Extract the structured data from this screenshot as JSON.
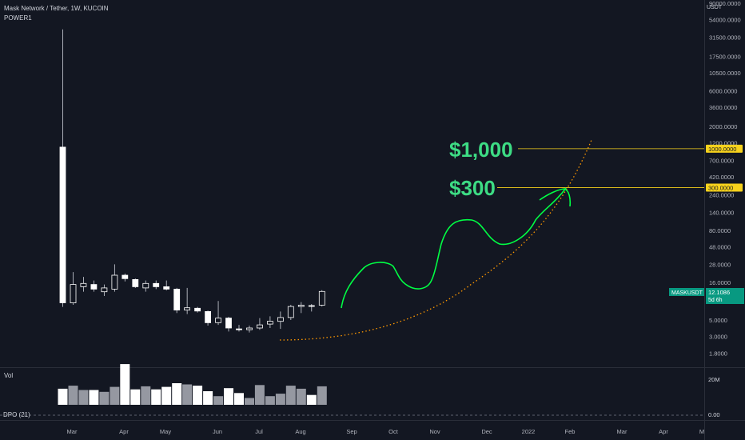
{
  "header": {
    "symbol_line": "Mask Network / Tether, 1W, KUCOIN",
    "indicator": "POWER1"
  },
  "price_axis": {
    "unit_label": "USDT",
    "ticks": [
      "90000.0000",
      "54000.0000",
      "31500.0000",
      "17500.0000",
      "10500.0000",
      "6000.0000",
      "3600.0000",
      "2000.0000",
      "1200.0000",
      "700.0000",
      "420.0000",
      "240.0000",
      "140.0000",
      "80.0000",
      "48.0000",
      "28.0000",
      "16.0000",
      "5.0000",
      "3.0000",
      "1.8000"
    ],
    "tick_values": [
      90000,
      54000,
      31500,
      17500,
      10500,
      6000,
      3600,
      2000,
      1200,
      700,
      420,
      240,
      140,
      80,
      48,
      28,
      16,
      5,
      3,
      1.8
    ],
    "scale": "log"
  },
  "time_axis": {
    "labels": [
      "Mar",
      "Apr",
      "May",
      "Jun",
      "Jul",
      "Aug",
      "Sep",
      "Oct",
      "Nov",
      "Dec",
      "2022",
      "Feb",
      "Mar",
      "Apr",
      "M"
    ]
  },
  "markers": {
    "last_price": {
      "symbol": "MASKUSDT",
      "price": "12.1086",
      "countdown": "5d 6h",
      "color": "#089981"
    },
    "level_1000": {
      "label": "1000.0000",
      "value": 1000,
      "color": "#f7d21c"
    },
    "level_300": {
      "label": "300.0000",
      "value": 300,
      "color": "#f7d21c"
    }
  },
  "annotations": {
    "target_1000": "$1,000",
    "target_300": "$300",
    "color": "#3ddc84",
    "path_color": "#00ff44",
    "curve_color": "#ff9800"
  },
  "volume_pane": {
    "title": "Vol",
    "scale_label": "20M",
    "up_color": "#ffffff",
    "down_color": "#9598a1"
  },
  "dpo_pane": {
    "title": "DPO (21)",
    "value_label": "0.00"
  },
  "chart_data": {
    "type": "candlestick",
    "interval": "1W",
    "y_scale": "log",
    "candles": [
      {
        "o": 1050,
        "h": 40000,
        "l": 7.5,
        "c": 8.5
      },
      {
        "o": 8.5,
        "h": 22,
        "l": 8.0,
        "c": 15
      },
      {
        "o": 14,
        "h": 19,
        "l": 12,
        "c": 15.5
      },
      {
        "o": 15,
        "h": 17,
        "l": 12,
        "c": 13
      },
      {
        "o": 12,
        "h": 15,
        "l": 10.5,
        "c": 13.5
      },
      {
        "o": 13,
        "h": 28,
        "l": 12,
        "c": 20
      },
      {
        "o": 20,
        "h": 21,
        "l": 16.5,
        "c": 18
      },
      {
        "o": 17.5,
        "h": 18,
        "l": 13.5,
        "c": 14
      },
      {
        "o": 13.5,
        "h": 17,
        "l": 12,
        "c": 15.5
      },
      {
        "o": 15.5,
        "h": 17,
        "l": 13,
        "c": 14
      },
      {
        "o": 14,
        "h": 17,
        "l": 12.5,
        "c": 13
      },
      {
        "o": 13,
        "h": 13.5,
        "l": 6.2,
        "c": 6.8
      },
      {
        "o": 6.8,
        "h": 13.5,
        "l": 6.0,
        "c": 7.3
      },
      {
        "o": 7.2,
        "h": 7.5,
        "l": 6.3,
        "c": 6.6
      },
      {
        "o": 6.5,
        "h": 6.7,
        "l": 4.2,
        "c": 4.6
      },
      {
        "o": 4.6,
        "h": 9.0,
        "l": 4.3,
        "c": 5.3
      },
      {
        "o": 5.3,
        "h": 5.5,
        "l": 3.5,
        "c": 3.9
      },
      {
        "o": 3.8,
        "h": 4.3,
        "l": 3.5,
        "c": 3.7
      },
      {
        "o": 3.7,
        "h": 4.2,
        "l": 3.4,
        "c": 3.9
      },
      {
        "o": 3.9,
        "h": 5.3,
        "l": 3.7,
        "c": 4.3
      },
      {
        "o": 4.4,
        "h": 5.6,
        "l": 3.9,
        "c": 4.8
      },
      {
        "o": 4.8,
        "h": 6.5,
        "l": 3.8,
        "c": 5.4
      },
      {
        "o": 5.4,
        "h": 8.0,
        "l": 5.0,
        "c": 7.6
      },
      {
        "o": 7.6,
        "h": 8.7,
        "l": 6.2,
        "c": 7.9
      },
      {
        "o": 7.8,
        "h": 8.2,
        "l": 6.5,
        "c": 7.7
      },
      {
        "o": 7.9,
        "h": 12.6,
        "l": 7.6,
        "c": 12.1
      }
    ],
    "volume": [
      0.26,
      0.31,
      0.24,
      0.24,
      0.21,
      0.29,
      0.66,
      0.25,
      0.3,
      0.25,
      0.29,
      0.35,
      0.33,
      0.31,
      0.22,
      0.14,
      0.27,
      0.19,
      0.11,
      0.32,
      0.14,
      0.18,
      0.31,
      0.26,
      0.16,
      0.3
    ],
    "volume_max": 0.7,
    "volume_units": "fraction of the 20M scale"
  }
}
